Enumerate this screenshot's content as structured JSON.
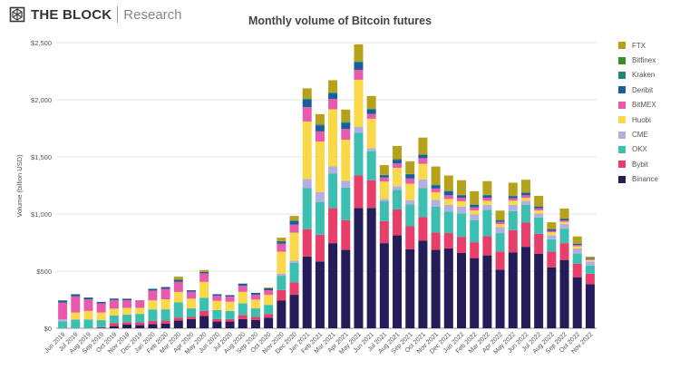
{
  "brand": {
    "name": "THE BLOCK",
    "sub": "Research"
  },
  "chart_data": {
    "type": "bar",
    "stacked": true,
    "title": "Monthly volume of Bitcoin futures",
    "xlabel": "",
    "ylabel": "Volume (billion USD)",
    "ylim": [
      0,
      2500
    ],
    "yticks": [
      0,
      500,
      1000,
      1500,
      2000,
      2500
    ],
    "ytick_labels": [
      "$0",
      "$500",
      "$1,000",
      "$1,500",
      "$2,000",
      "$2,500"
    ],
    "grid": true,
    "legend_placement": "right",
    "categories": [
      "Jun 2019",
      "Jul 2019",
      "Aug 2019",
      "Sep 2019",
      "Oct 2019",
      "Nov 2019",
      "Dec 2019",
      "Jan 2020",
      "Feb 2020",
      "Mar 2020",
      "Apr 2020",
      "May 2020",
      "Jun 2020",
      "Jul 2020",
      "Aug 2020",
      "Sep 2020",
      "Oct 2020",
      "Nov 2020",
      "Dec 2020",
      "Jan 2021",
      "Feb 2021",
      "Mar 2021",
      "Apr 2021",
      "May 2021",
      "Jun 2021",
      "Jul 2021",
      "Aug 2021",
      "Sep 2021",
      "Oct 2021",
      "Nov 2021",
      "Dec 2021",
      "Jan 2022",
      "Feb 2022",
      "Mar 2022",
      "Apr 2022",
      "May 2022",
      "Jun 2022",
      "Jul 2022",
      "Aug 2022",
      "Sep 2022",
      "Oct 2022",
      "Nov 2022"
    ],
    "series": [
      {
        "name": "Binance",
        "color": "#251c5a",
        "values": [
          0,
          0,
          0,
          5,
          19,
          32,
          27,
          37,
          40,
          67,
          80,
          107,
          59,
          59,
          80,
          72,
          93,
          242,
          293,
          628,
          585,
          745,
          686,
          1053,
          1053,
          745,
          813,
          691,
          766,
          686,
          699,
          659,
          614,
          638,
          514,
          665,
          713,
          651,
          534,
          598,
          447,
          386
        ]
      },
      {
        "name": "Bybit",
        "color": "#e83e6a",
        "values": [
          0,
          0,
          0,
          5,
          27,
          21,
          24,
          27,
          27,
          27,
          19,
          45,
          21,
          21,
          37,
          27,
          32,
          93,
          109,
          239,
          234,
          308,
          261,
          284,
          243,
          193,
          227,
          202,
          207,
          151,
          134,
          141,
          139,
          167,
          159,
          194,
          212,
          176,
          139,
          147,
          119,
          92
        ]
      },
      {
        "name": "OKX",
        "color": "#3cbfb0",
        "values": [
          59,
          77,
          77,
          61,
          67,
          67,
          75,
          101,
          99,
          133,
          75,
          115,
          80,
          72,
          101,
          75,
          80,
          125,
          172,
          359,
          287,
          303,
          284,
          373,
          254,
          173,
          172,
          192,
          253,
          227,
          189,
          205,
          194,
          232,
          160,
          167,
          155,
          143,
          106,
          127,
          88,
          70
        ]
      },
      {
        "name": "CME",
        "color": "#b3afe0",
        "values": [
          19,
          0,
          0,
          0,
          0,
          0,
          0,
          0,
          0,
          0,
          0,
          0,
          0,
          0,
          0,
          0,
          0,
          18,
          19,
          80,
          86,
          61,
          59,
          52,
          27,
          21,
          32,
          35,
          77,
          60,
          58,
          59,
          50,
          43,
          52,
          54,
          36,
          35,
          34,
          40,
          45,
          37
        ]
      },
      {
        "name": "Huobi",
        "color": "#f9d849",
        "values": [
          0,
          61,
          75,
          67,
          59,
          59,
          53,
          80,
          88,
          91,
          85,
          139,
          80,
          80,
          101,
          77,
          88,
          192,
          244,
          504,
          443,
          500,
          361,
          413,
          257,
          152,
          160,
          146,
          136,
          67,
          53,
          48,
          35,
          36,
          27,
          37,
          27,
          27,
          27,
          19,
          19,
          13
        ]
      },
      {
        "name": "BitMEX",
        "color": "#e85aad",
        "values": [
          147,
          141,
          101,
          80,
          75,
          67,
          67,
          85,
          91,
          88,
          61,
          75,
          45,
          45,
          53,
          43,
          40,
          70,
          70,
          125,
          88,
          90,
          93,
          87,
          43,
          35,
          39,
          45,
          50,
          32,
          31,
          31,
          26,
          27,
          19,
          21,
          21,
          18,
          13,
          13,
          11,
          8
        ]
      },
      {
        "name": "Deribit",
        "color": "#1c5d99",
        "values": [
          19,
          19,
          16,
          13,
          13,
          13,
          0,
          16,
          16,
          19,
          13,
          13,
          13,
          13,
          19,
          16,
          16,
          18,
          32,
          67,
          53,
          48,
          53,
          64,
          37,
          18,
          32,
          34,
          29,
          29,
          35,
          21,
          22,
          21,
          13,
          18,
          22,
          14,
          13,
          13,
          11,
          8
        ]
      },
      {
        "name": "Kraken",
        "color": "#1f8a70",
        "values": [
          0,
          0,
          0,
          0,
          0,
          0,
          0,
          0,
          0,
          0,
          0,
          0,
          0,
          0,
          0,
          0,
          0,
          5,
          5,
          8,
          8,
          8,
          8,
          10,
          8,
          5,
          5,
          5,
          5,
          5,
          5,
          4,
          4,
          4,
          4,
          3,
          3,
          3,
          3,
          3,
          3,
          2
        ]
      },
      {
        "name": "Bitfinex",
        "color": "#3c8a2e",
        "values": [
          0,
          0,
          0,
          0,
          0,
          0,
          0,
          0,
          0,
          0,
          0,
          0,
          0,
          0,
          0,
          0,
          0,
          0,
          0,
          2,
          2,
          2,
          2,
          3,
          2,
          0,
          0,
          0,
          0,
          0,
          0,
          0,
          0,
          0,
          0,
          0,
          0,
          0,
          0,
          0,
          0,
          0
        ]
      },
      {
        "name": "FTX",
        "color": "#b5a21a",
        "values": [
          0,
          0,
          0,
          0,
          0,
          0,
          0,
          0,
          0,
          27,
          0,
          16,
          0,
          0,
          0,
          0,
          8,
          30,
          39,
          88,
          88,
          106,
          107,
          146,
          109,
          86,
          115,
          112,
          146,
          159,
          133,
          128,
          116,
          120,
          82,
          115,
          111,
          92,
          59,
          88,
          61,
          11
        ]
      }
    ],
    "legend_order": [
      "FTX",
      "Bitfinex",
      "Kraken",
      "Deribit",
      "BitMEX",
      "Huobi",
      "CME",
      "OKX",
      "Bybit",
      "Binance"
    ]
  }
}
